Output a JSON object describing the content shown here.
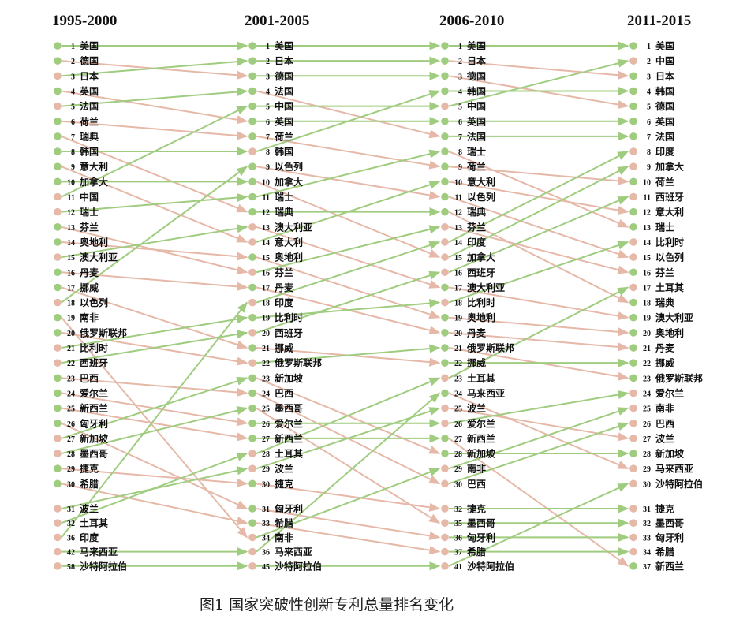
{
  "caption": "图1 国家突破性创新专利总量排名变化",
  "colors": {
    "up": "#9fcc7e",
    "down": "#e6b8a8"
  },
  "columns": [
    {
      "period": "1995-2000",
      "entries": [
        {
          "rank": "1",
          "country": "美国",
          "up": true
        },
        {
          "rank": "2",
          "country": "德国",
          "up": true
        },
        {
          "rank": "3",
          "country": "日本",
          "up": false
        },
        {
          "rank": "4",
          "country": "英国",
          "up": true
        },
        {
          "rank": "5",
          "country": "法国",
          "up": false
        },
        {
          "rank": "6",
          "country": "荷兰",
          "up": true
        },
        {
          "rank": "7",
          "country": "瑞典",
          "up": true
        },
        {
          "rank": "8",
          "country": "韩国",
          "up": true
        },
        {
          "rank": "9",
          "country": "意大利",
          "up": true
        },
        {
          "rank": "10",
          "country": "加拿大",
          "up": true
        },
        {
          "rank": "11",
          "country": "中国",
          "up": false
        },
        {
          "rank": "12",
          "country": "瑞士",
          "up": false
        },
        {
          "rank": "13",
          "country": "芬兰",
          "up": true
        },
        {
          "rank": "14",
          "country": "奥地利",
          "up": true
        },
        {
          "rank": "15",
          "country": "澳大利亚",
          "up": false
        },
        {
          "rank": "16",
          "country": "丹麦",
          "up": true
        },
        {
          "rank": "17",
          "country": "挪威",
          "up": true
        },
        {
          "rank": "18",
          "country": "以色列",
          "up": false
        },
        {
          "rank": "19",
          "country": "南非",
          "up": true
        },
        {
          "rank": "20",
          "country": "俄罗斯联邦",
          "up": true
        },
        {
          "rank": "21",
          "country": "比利时",
          "up": false
        },
        {
          "rank": "22",
          "country": "西班牙",
          "up": false
        },
        {
          "rank": "23",
          "country": "巴西",
          "up": true
        },
        {
          "rank": "24",
          "country": "爱尔兰",
          "up": true
        },
        {
          "rank": "25",
          "country": "新西兰",
          "up": true
        },
        {
          "rank": "26",
          "country": "匈牙利",
          "up": true
        },
        {
          "rank": "27",
          "country": "新加坡",
          "up": false
        },
        {
          "rank": "28",
          "country": "墨西哥",
          "up": false
        },
        {
          "rank": "29",
          "country": "捷克",
          "up": true
        },
        {
          "rank": "30",
          "country": "希腊",
          "up": true
        },
        {
          "rank": "31",
          "country": "波兰",
          "up": false
        },
        {
          "rank": "32",
          "country": "土耳其",
          "up": false
        },
        {
          "rank": "36",
          "country": "印度",
          "up": false
        },
        {
          "rank": "42",
          "country": "马来西亚",
          "up": false
        },
        {
          "rank": "58",
          "country": "沙特阿拉伯",
          "up": false
        }
      ]
    },
    {
      "period": "2001-2005",
      "entries": [
        {
          "rank": "1",
          "country": "美国",
          "up": true
        },
        {
          "rank": "2",
          "country": "日本",
          "up": true
        },
        {
          "rank": "3",
          "country": "德国",
          "up": true
        },
        {
          "rank": "4",
          "country": "法国",
          "up": true
        },
        {
          "rank": "5",
          "country": "中国",
          "up": true
        },
        {
          "rank": "6",
          "country": "英国",
          "up": true
        },
        {
          "rank": "7",
          "country": "荷兰",
          "up": true
        },
        {
          "rank": "8",
          "country": "韩国",
          "up": false
        },
        {
          "rank": "9",
          "country": "以色列",
          "up": true
        },
        {
          "rank": "10",
          "country": "加拿大",
          "up": true
        },
        {
          "rank": "11",
          "country": "瑞士",
          "up": true
        },
        {
          "rank": "12",
          "country": "瑞典",
          "up": true
        },
        {
          "rank": "13",
          "country": "澳大利亚",
          "up": false
        },
        {
          "rank": "14",
          "country": "意大利",
          "up": false
        },
        {
          "rank": "15",
          "country": "奥地利",
          "up": true
        },
        {
          "rank": "16",
          "country": "芬兰",
          "up": false
        },
        {
          "rank": "17",
          "country": "丹麦",
          "up": true
        },
        {
          "rank": "18",
          "country": "印度",
          "up": false
        },
        {
          "rank": "19",
          "country": "比利时",
          "up": true
        },
        {
          "rank": "20",
          "country": "西班牙",
          "up": false
        },
        {
          "rank": "21",
          "country": "挪威",
          "up": true
        },
        {
          "rank": "22",
          "country": "俄罗斯联邦",
          "up": false
        },
        {
          "rank": "23",
          "country": "新加坡",
          "up": true
        },
        {
          "rank": "24",
          "country": "巴西",
          "up": true
        },
        {
          "rank": "25",
          "country": "墨西哥",
          "up": true
        },
        {
          "rank": "26",
          "country": "爱尔兰",
          "up": true
        },
        {
          "rank": "27",
          "country": "新西兰",
          "up": true
        },
        {
          "rank": "28",
          "country": "土耳其",
          "up": false
        },
        {
          "rank": "29",
          "country": "波兰",
          "up": false
        },
        {
          "rank": "30",
          "country": "捷克",
          "up": true
        },
        {
          "rank": "31",
          "country": "匈牙利",
          "up": true
        },
        {
          "rank": "33",
          "country": "希腊",
          "up": true
        },
        {
          "rank": "34",
          "country": "南非",
          "up": false
        },
        {
          "rank": "36",
          "country": "马来西亚",
          "up": false
        },
        {
          "rank": "45",
          "country": "沙特阿拉伯",
          "up": false
        }
      ]
    },
    {
      "period": "2006-2010",
      "entries": [
        {
          "rank": "1",
          "country": "美国",
          "up": true
        },
        {
          "rank": "2",
          "country": "日本",
          "up": true
        },
        {
          "rank": "3",
          "country": "德国",
          "up": true
        },
        {
          "rank": "4",
          "country": "韩国",
          "up": true
        },
        {
          "rank": "5",
          "country": "中国",
          "up": false
        },
        {
          "rank": "6",
          "country": "英国",
          "up": true
        },
        {
          "rank": "7",
          "country": "法国",
          "up": true
        },
        {
          "rank": "8",
          "country": "瑞士",
          "up": true
        },
        {
          "rank": "9",
          "country": "荷兰",
          "up": true
        },
        {
          "rank": "10",
          "country": "意大利",
          "up": true
        },
        {
          "rank": "11",
          "country": "以色列",
          "up": true
        },
        {
          "rank": "12",
          "country": "瑞典",
          "up": true
        },
        {
          "rank": "13",
          "country": "芬兰",
          "up": false
        },
        {
          "rank": "14",
          "country": "印度",
          "up": false
        },
        {
          "rank": "15",
          "country": "加拿大",
          "up": false
        },
        {
          "rank": "16",
          "country": "西班牙",
          "up": false
        },
        {
          "rank": "17",
          "country": "澳大利亚",
          "up": true
        },
        {
          "rank": "18",
          "country": "比利时",
          "up": false
        },
        {
          "rank": "19",
          "country": "奥地利",
          "up": true
        },
        {
          "rank": "20",
          "country": "丹麦",
          "up": true
        },
        {
          "rank": "21",
          "country": "俄罗斯联邦",
          "up": true
        },
        {
          "rank": "22",
          "country": "挪威",
          "up": true
        },
        {
          "rank": "23",
          "country": "土耳其",
          "up": false
        },
        {
          "rank": "24",
          "country": "马来西亚",
          "up": true
        },
        {
          "rank": "25",
          "country": "波兰",
          "up": false
        },
        {
          "rank": "26",
          "country": "爱尔兰",
          "up": false
        },
        {
          "rank": "27",
          "country": "新西兰",
          "up": true
        },
        {
          "rank": "28",
          "country": "新加坡",
          "up": true
        },
        {
          "rank": "29",
          "country": "南非",
          "up": false
        },
        {
          "rank": "30",
          "country": "巴西",
          "up": false
        },
        {
          "rank": "32",
          "country": "捷克",
          "up": false
        },
        {
          "rank": "35",
          "country": "墨西哥",
          "up": false
        },
        {
          "rank": "36",
          "country": "匈牙利",
          "up": false
        },
        {
          "rank": "37",
          "country": "希腊",
          "up": false
        },
        {
          "rank": "41",
          "country": "沙特阿拉伯",
          "up": false
        }
      ]
    },
    {
      "period": "2011-2015",
      "entries": [
        {
          "rank": "1",
          "country": "美国",
          "up": true
        },
        {
          "rank": "2",
          "country": "中国",
          "up": false
        },
        {
          "rank": "3",
          "country": "日本",
          "up": true
        },
        {
          "rank": "4",
          "country": "韩国",
          "up": true
        },
        {
          "rank": "5",
          "country": "德国",
          "up": true
        },
        {
          "rank": "6",
          "country": "英国",
          "up": true
        },
        {
          "rank": "7",
          "country": "法国",
          "up": true
        },
        {
          "rank": "8",
          "country": "印度",
          "up": false
        },
        {
          "rank": "9",
          "country": "加拿大",
          "up": false
        },
        {
          "rank": "10",
          "country": "荷兰",
          "up": true
        },
        {
          "rank": "11",
          "country": "西班牙",
          "up": false
        },
        {
          "rank": "12",
          "country": "意大利",
          "up": true
        },
        {
          "rank": "13",
          "country": "瑞士",
          "up": true
        },
        {
          "rank": "14",
          "country": "比利时",
          "up": false
        },
        {
          "rank": "15",
          "country": "以色列",
          "up": false
        },
        {
          "rank": "16",
          "country": "芬兰",
          "up": true
        },
        {
          "rank": "17",
          "country": "土耳其",
          "up": false
        },
        {
          "rank": "18",
          "country": "瑞典",
          "up": true
        },
        {
          "rank": "19",
          "country": "澳大利亚",
          "up": true
        },
        {
          "rank": "20",
          "country": "奥地利",
          "up": true
        },
        {
          "rank": "21",
          "country": "丹麦",
          "up": true
        },
        {
          "rank": "22",
          "country": "挪威",
          "up": true
        },
        {
          "rank": "23",
          "country": "俄罗斯联邦",
          "up": true
        },
        {
          "rank": "24",
          "country": "爱尔兰",
          "up": false
        },
        {
          "rank": "25",
          "country": "南非",
          "up": false
        },
        {
          "rank": "26",
          "country": "巴西",
          "up": false
        },
        {
          "rank": "27",
          "country": "波兰",
          "up": false
        },
        {
          "rank": "28",
          "country": "新加坡",
          "up": true
        },
        {
          "rank": "29",
          "country": "马来西亚",
          "up": false
        },
        {
          "rank": "30",
          "country": "沙特阿拉伯",
          "up": false
        },
        {
          "rank": "31",
          "country": "捷克",
          "up": false
        },
        {
          "rank": "32",
          "country": "墨西哥",
          "up": false
        },
        {
          "rank": "33",
          "country": "匈牙利",
          "up": false
        },
        {
          "rank": "34",
          "country": "希腊",
          "up": false
        },
        {
          "rank": "37",
          "country": "新西兰",
          "up": true
        }
      ]
    }
  ]
}
